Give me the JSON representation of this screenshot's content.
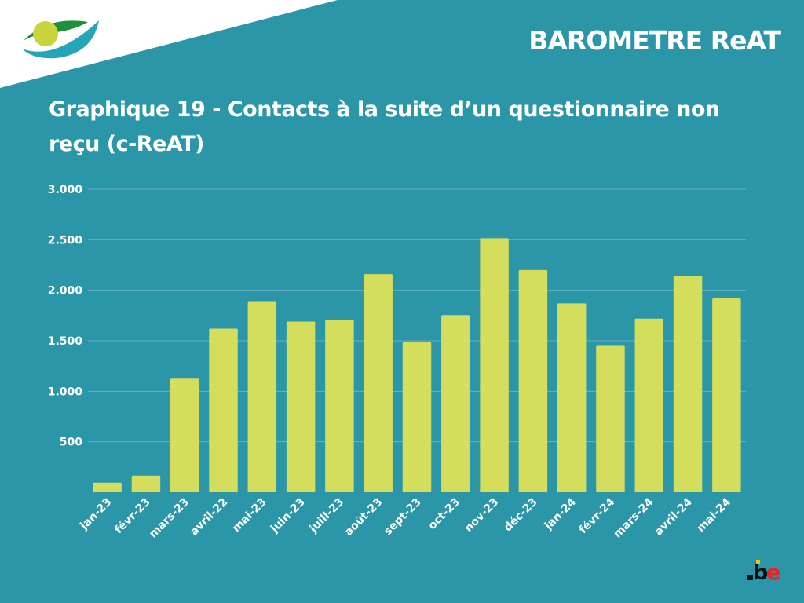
{
  "header": {
    "brand_title": "BAROMETRE ReAT"
  },
  "footer": {
    "domain_badge": ".be"
  },
  "colors": {
    "background": "#2b96a8",
    "bar": "#d4dd5c",
    "text": "#ffffff",
    "logo_green": "#1f8f3a",
    "logo_yellow": "#c9d53d",
    "logo_teal": "#24a5b8",
    "be_red": "#e3242b",
    "be_yellow": "#f4c300"
  },
  "icons": {
    "logo": "inami-logo-icon",
    "be_logo": "belgium-be-logo-icon"
  },
  "chart_data": {
    "type": "bar",
    "title": "Graphique 19 - Contacts à la suite d’un questionnaire non reçu (c-ReAT)",
    "xlabel": "",
    "ylabel": "",
    "categories": [
      "jan-23",
      "févr-23",
      "mars-23",
      "avril-22",
      "mai-23",
      "juin-23",
      "juill-23",
      "août-23",
      "sept-23",
      "oct-23",
      "nov-23",
      "déc-23",
      "jan-24",
      "févr-24",
      "mars-24",
      "avril-24",
      "mai-24"
    ],
    "values": [
      95,
      165,
      1125,
      1620,
      1885,
      1690,
      1705,
      2160,
      1485,
      1755,
      2515,
      2200,
      1870,
      1450,
      1720,
      2145,
      1920
    ],
    "yticks": [
      500,
      1000,
      1500,
      2000,
      2500,
      3000
    ],
    "ytick_labels": [
      "500",
      "1.000",
      "1.500",
      "2.000",
      "2.500",
      "3.000"
    ],
    "ylim": [
      0,
      3000
    ],
    "grid": true,
    "legend": "none"
  }
}
